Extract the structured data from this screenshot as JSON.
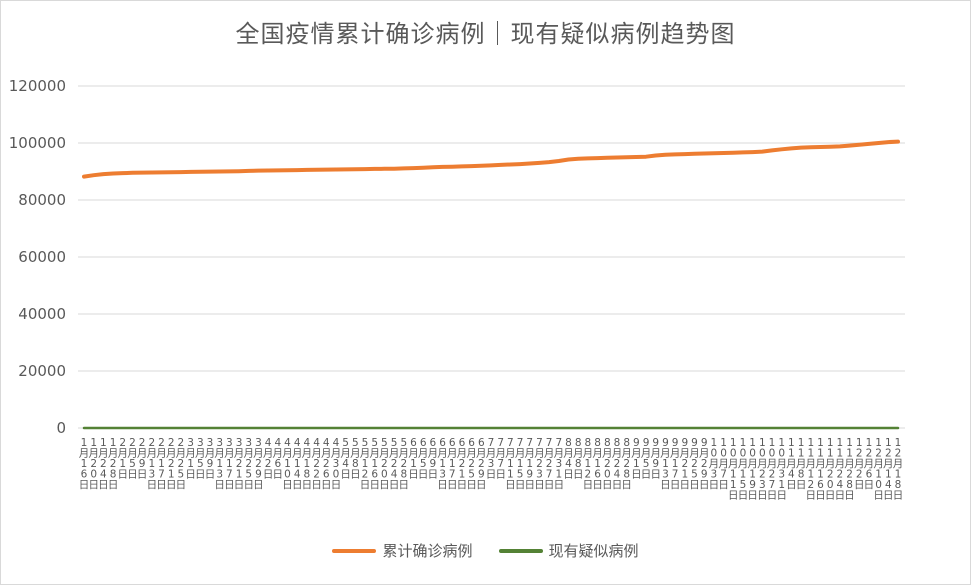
{
  "chart_data": {
    "type": "line",
    "title": "全国疫情累计确诊病例｜现有疑似病例趋势图",
    "ylim": [
      0,
      120000
    ],
    "yticks": [
      0,
      20000,
      40000,
      60000,
      80000,
      100000,
      120000
    ],
    "grid": true,
    "legend_position": "bottom",
    "x": [
      "1月16日",
      "1月20日",
      "1月24日",
      "1月28日",
      "2月1日",
      "2月5日",
      "2月9日",
      "2月13日",
      "2月17日",
      "2月21日",
      "2月25日",
      "3月1日",
      "3月5日",
      "3月9日",
      "3月13日",
      "3月17日",
      "3月21日",
      "3月25日",
      "3月29日",
      "4月2日",
      "4月6日",
      "4月10日",
      "4月14日",
      "4月18日",
      "4月22日",
      "4月26日",
      "4月30日",
      "5月4日",
      "5月8日",
      "5月12日",
      "5月16日",
      "5月20日",
      "5月24日",
      "5月28日",
      "6月1日",
      "6月5日",
      "6月9日",
      "6月13日",
      "6月17日",
      "6月21日",
      "6月25日",
      "6月29日",
      "7月3日",
      "7月7日",
      "7月11日",
      "7月15日",
      "7月19日",
      "7月23日",
      "7月27日",
      "7月31日",
      "8月4日",
      "8月8日",
      "8月12日",
      "8月16日",
      "8月20日",
      "8月24日",
      "8月28日",
      "9月1日",
      "9月5日",
      "9月9日",
      "9月13日",
      "9月17日",
      "9月21日",
      "9月25日",
      "9月29日",
      "10月3日",
      "10月7日",
      "10月11日",
      "10月15日",
      "10月19日",
      "10月23日",
      "10月27日",
      "10月31日",
      "11月4日",
      "11月8日",
      "11月12日",
      "11月16日",
      "11月20日",
      "11月24日",
      "11月28日",
      "12月2日",
      "12月6日",
      "12月10日",
      "12月14日",
      "12月18日"
    ],
    "series": [
      {
        "name": "累计确诊病例",
        "color": "#ED7D31",
        "values": [
          88200,
          88700,
          89100,
          89300,
          89450,
          89550,
          89600,
          89650,
          89700,
          89750,
          89800,
          89850,
          89900,
          89950,
          90000,
          90050,
          90100,
          90200,
          90300,
          90350,
          90400,
          90450,
          90500,
          90550,
          90600,
          90650,
          90700,
          90750,
          90800,
          90850,
          90900,
          90950,
          91000,
          91100,
          91200,
          91350,
          91500,
          91600,
          91700,
          91800,
          91900,
          92000,
          92150,
          92300,
          92450,
          92600,
          92800,
          93000,
          93300,
          93700,
          94200,
          94500,
          94600,
          94700,
          94800,
          94900,
          95000,
          95100,
          95200,
          95600,
          95900,
          96000,
          96100,
          96200,
          96300,
          96400,
          96500,
          96600,
          96700,
          96800,
          97000,
          97400,
          97800,
          98100,
          98400,
          98500,
          98600,
          98700,
          98800,
          99100,
          99400,
          99700,
          100000,
          100300,
          100500
        ]
      },
      {
        "name": "现有疑似病例",
        "color": "#548235",
        "values": [
          0,
          0,
          0,
          0,
          0,
          0,
          0,
          0,
          0,
          0,
          0,
          0,
          0,
          0,
          0,
          0,
          0,
          0,
          0,
          0,
          0,
          0,
          0,
          0,
          0,
          0,
          0,
          0,
          0,
          0,
          0,
          0,
          0,
          0,
          0,
          0,
          0,
          0,
          0,
          0,
          0,
          0,
          0,
          0,
          0,
          0,
          0,
          0,
          0,
          0,
          0,
          0,
          0,
          0,
          0,
          0,
          0,
          0,
          0,
          0,
          0,
          0,
          0,
          0,
          0,
          0,
          0,
          0,
          0,
          0,
          0,
          0,
          0,
          0,
          0,
          0,
          0,
          0,
          0,
          0,
          0,
          0,
          0,
          0,
          0
        ]
      }
    ]
  }
}
